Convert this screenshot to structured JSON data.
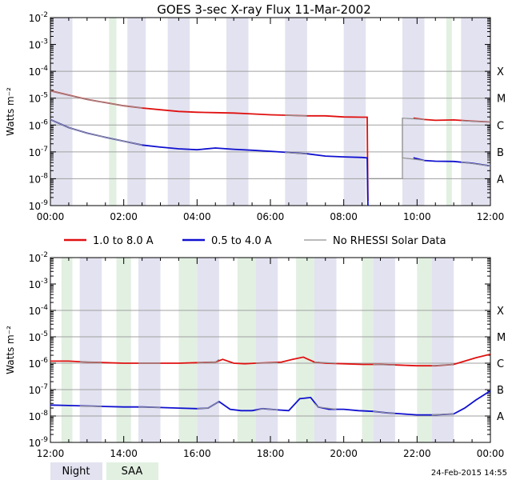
{
  "title": "GOES 3-sec X-ray Flux   11-Mar-2002",
  "footer_date": "24-Feb-2015 14:55",
  "colors": {
    "long_channel": "#e01010",
    "short_channel": "#1010d0",
    "no_rhessi": "#909090",
    "night": "#e2e2f0",
    "saa": "#e2f0e2",
    "grid": "#a0a0a0"
  },
  "legend": [
    {
      "label": "1.0 to 8.0 A",
      "color": "#e01010"
    },
    {
      "label": "0.5 to 4.0 A",
      "color": "#1010d0"
    },
    {
      "label": "No RHESSI Solar Data",
      "color": "#909090"
    }
  ],
  "band_legend": {
    "night": "Night",
    "saa": "SAA"
  },
  "chart_data": [
    {
      "type": "line",
      "ylabel": "Watts m⁻²",
      "y_scale": "log",
      "ylim": [
        1e-09,
        0.01
      ],
      "y_ticks": [
        {
          "value": 1e-09,
          "base": "10",
          "exp": "-9"
        },
        {
          "value": 1e-08,
          "base": "10",
          "exp": "-8"
        },
        {
          "value": 1e-07,
          "base": "10",
          "exp": "-7"
        },
        {
          "value": 1e-06,
          "base": "10",
          "exp": "-6"
        },
        {
          "value": 1e-05,
          "base": "10",
          "exp": "-5"
        },
        {
          "value": 0.0001,
          "base": "10",
          "exp": "-4"
        },
        {
          "value": 0.001,
          "base": "10",
          "exp": "-3"
        },
        {
          "value": 0.01,
          "base": "10",
          "exp": "-2"
        }
      ],
      "flare_classes": [
        {
          "label": "A",
          "value": 1e-08
        },
        {
          "label": "B",
          "value": 1e-07
        },
        {
          "label": "C",
          "value": 1e-06
        },
        {
          "label": "M",
          "value": 1e-05
        },
        {
          "label": "X",
          "value": 0.0001
        }
      ],
      "xlim": [
        0,
        12
      ],
      "x_ticks": [
        "00:00",
        "02:00",
        "04:00",
        "06:00",
        "08:00",
        "10:00",
        "12:00"
      ],
      "night_bands": [
        [
          0,
          0.6
        ],
        [
          2.1,
          2.6
        ],
        [
          3.2,
          3.8
        ],
        [
          4.8,
          5.4
        ],
        [
          6.4,
          7.0
        ],
        [
          8.0,
          8.6
        ],
        [
          9.6,
          10.2
        ],
        [
          11.2,
          12.0
        ]
      ],
      "saa_bands": [
        [
          1.6,
          1.8
        ],
        [
          10.8,
          10.95
        ]
      ],
      "series": [
        {
          "name": "1.0 to 8.0 A",
          "color": "#e01010",
          "segments": [
            [
              [
                0,
                1.9e-05
              ],
              [
                0.5,
                1.3e-05
              ],
              [
                1,
                9e-06
              ],
              [
                1.5,
                6.8e-06
              ],
              [
                2,
                5.2e-06
              ],
              [
                2.5,
                4.3e-06
              ],
              [
                3,
                3.7e-06
              ],
              [
                3.5,
                3.2e-06
              ],
              [
                4,
                3e-06
              ],
              [
                4.5,
                2.9e-06
              ],
              [
                5,
                2.8e-06
              ],
              [
                5.5,
                2.6e-06
              ],
              [
                6,
                2.4e-06
              ],
              [
                6.5,
                2.3e-06
              ],
              [
                7,
                2.2e-06
              ],
              [
                7.5,
                2.2e-06
              ],
              [
                8,
                2e-06
              ],
              [
                8.5,
                1.95e-06
              ],
              [
                8.64,
                1.95e-06
              ],
              [
                8.66,
                1.5e-09
              ]
            ],
            [
              [
                9.9,
                1.8e-06
              ],
              [
                10.2,
                1.6e-06
              ],
              [
                10.5,
                1.5e-06
              ],
              [
                11,
                1.55e-06
              ],
              [
                11.5,
                1.4e-06
              ],
              [
                12,
                1.3e-06
              ]
            ]
          ]
        },
        {
          "name": "0.5 to 4.0 A",
          "color": "#1010d0",
          "segments": [
            [
              [
                0,
                1.6e-06
              ],
              [
                0.5,
                8e-07
              ],
              [
                1,
                5e-07
              ],
              [
                1.5,
                3.5e-07
              ],
              [
                2,
                2.5e-07
              ],
              [
                2.5,
                1.8e-07
              ],
              [
                3,
                1.5e-07
              ],
              [
                3.5,
                1.3e-07
              ],
              [
                4,
                1.2e-07
              ],
              [
                4.5,
                1.4e-07
              ],
              [
                5,
                1.25e-07
              ],
              [
                5.5,
                1.15e-07
              ],
              [
                6,
                1.05e-07
              ],
              [
                6.5,
                9.5e-08
              ],
              [
                7,
                8.5e-08
              ],
              [
                7.5,
                7e-08
              ],
              [
                8,
                6.5e-08
              ],
              [
                8.5,
                6.2e-08
              ],
              [
                8.64,
                6e-08
              ],
              [
                8.66,
                1e-09
              ]
            ],
            [
              [
                9.9,
                6e-08
              ],
              [
                10.2,
                4.8e-08
              ],
              [
                10.5,
                4.5e-08
              ],
              [
                11,
                4.4e-08
              ],
              [
                11.5,
                3.8e-08
              ],
              [
                12,
                3e-08
              ]
            ]
          ]
        },
        {
          "name": "No RHESSI Solar Data",
          "color": "#909090",
          "segments": [
            [
              [
                0,
                1.9e-05
              ],
              [
                0.5,
                1.3e-05
              ],
              [
                1,
                9e-06
              ],
              [
                1.5,
                6.8e-06
              ],
              [
                2,
                5.2e-06
              ],
              [
                2.5,
                4.3e-06
              ]
            ],
            [
              [
                0,
                1.6e-06
              ],
              [
                0.5,
                8e-07
              ],
              [
                1,
                5e-07
              ],
              [
                1.5,
                3.5e-07
              ],
              [
                2,
                2.5e-07
              ],
              [
                2.5,
                1.8e-07
              ]
            ],
            [
              [
                6.4,
                2.3e-06
              ],
              [
                7,
                2.2e-06
              ]
            ],
            [
              [
                6.4,
                9.5e-08
              ],
              [
                7,
                8.5e-08
              ]
            ],
            [
              [
                8.66,
                1e-08
              ],
              [
                9.6,
                1e-08
              ],
              [
                9.6,
                1.8e-06
              ],
              [
                10.2,
                1.6e-06
              ]
            ],
            [
              [
                9.6,
                1.8e-06
              ],
              [
                9.6,
                6e-08
              ],
              [
                10.2,
                4.8e-08
              ]
            ],
            [
              [
                11.2,
                1.45e-06
              ],
              [
                12,
                1.3e-06
              ]
            ],
            [
              [
                11.2,
                4.2e-08
              ],
              [
                12,
                3e-08
              ]
            ]
          ]
        }
      ]
    },
    {
      "type": "line",
      "ylabel": "Watts m⁻²",
      "y_scale": "log",
      "ylim": [
        1e-09,
        0.01
      ],
      "y_ticks": [
        {
          "value": 1e-09,
          "base": "10",
          "exp": "-9"
        },
        {
          "value": 1e-08,
          "base": "10",
          "exp": "-8"
        },
        {
          "value": 1e-07,
          "base": "10",
          "exp": "-7"
        },
        {
          "value": 1e-06,
          "base": "10",
          "exp": "-6"
        },
        {
          "value": 1e-05,
          "base": "10",
          "exp": "-5"
        },
        {
          "value": 0.0001,
          "base": "10",
          "exp": "-4"
        },
        {
          "value": 0.001,
          "base": "10",
          "exp": "-3"
        },
        {
          "value": 0.01,
          "base": "10",
          "exp": "-2"
        }
      ],
      "flare_classes": [
        {
          "label": "A",
          "value": 1e-08
        },
        {
          "label": "B",
          "value": 1e-07
        },
        {
          "label": "C",
          "value": 1e-06
        },
        {
          "label": "M",
          "value": 1e-05
        },
        {
          "label": "X",
          "value": 0.0001
        }
      ],
      "xlim": [
        12,
        24
      ],
      "x_ticks": [
        "12:00",
        "14:00",
        "16:00",
        "18:00",
        "20:00",
        "22:00",
        "00:00"
      ],
      "night_bands": [
        [
          12.8,
          13.4
        ],
        [
          14.4,
          15.0
        ],
        [
          16.0,
          16.6
        ],
        [
          17.6,
          18.2
        ],
        [
          19.2,
          19.8
        ],
        [
          20.8,
          21.4
        ],
        [
          22.4,
          23.0
        ]
      ],
      "saa_bands": [
        [
          12.3,
          12.6
        ],
        [
          13.8,
          14.2
        ],
        [
          15.5,
          16.0
        ],
        [
          17.1,
          17.6
        ],
        [
          18.7,
          19.2
        ],
        [
          20.5,
          20.8
        ],
        [
          22.0,
          22.4
        ]
      ],
      "series": [
        {
          "name": "1.0 to 8.0 A",
          "color": "#e01010",
          "segments": [
            [
              [
                12,
                1.2e-06
              ],
              [
                12.5,
                1.2e-06
              ],
              [
                13,
                1.1e-06
              ],
              [
                13.5,
                1.05e-06
              ],
              [
                14,
                1e-06
              ],
              [
                14.5,
                1e-06
              ],
              [
                15,
                1e-06
              ],
              [
                15.5,
                1e-06
              ],
              [
                16,
                1.05e-06
              ],
              [
                16.5,
                1.1e-06
              ],
              [
                16.7,
                1.4e-06
              ],
              [
                17,
                1e-06
              ],
              [
                17.3,
                9.5e-07
              ],
              [
                17.6,
                1e-06
              ],
              [
                18,
                1.05e-06
              ],
              [
                18.3,
                1.1e-06
              ],
              [
                18.6,
                1.4e-06
              ],
              [
                18.9,
                1.7e-06
              ],
              [
                19.2,
                1.1e-06
              ],
              [
                19.5,
                1e-06
              ],
              [
                20,
                9.5e-07
              ],
              [
                20.5,
                9e-07
              ],
              [
                21,
                9e-07
              ],
              [
                21.5,
                8.5e-07
              ],
              [
                22,
                8e-07
              ],
              [
                22.5,
                8e-07
              ],
              [
                23,
                9e-07
              ],
              [
                23.3,
                1.2e-06
              ],
              [
                23.6,
                1.6e-06
              ],
              [
                24,
                2.2e-06
              ]
            ]
          ]
        },
        {
          "name": "0.5 to 4.0 A",
          "color": "#1010d0",
          "segments": [
            [
              [
                12,
                2.6e-08
              ],
              [
                12.5,
                2.5e-08
              ],
              [
                13,
                2.4e-08
              ],
              [
                13.5,
                2.3e-08
              ],
              [
                14,
                2.2e-08
              ],
              [
                14.5,
                2.2e-08
              ],
              [
                15,
                2.1e-08
              ],
              [
                15.5,
                2e-08
              ],
              [
                16,
                1.9e-08
              ],
              [
                16.3,
                2e-08
              ],
              [
                16.6,
                3.5e-08
              ],
              [
                16.9,
                1.8e-08
              ],
              [
                17.2,
                1.6e-08
              ],
              [
                17.5,
                1.6e-08
              ],
              [
                17.8,
                1.9e-08
              ],
              [
                18.2,
                1.7e-08
              ],
              [
                18.5,
                1.6e-08
              ],
              [
                18.8,
                4.5e-08
              ],
              [
                19.1,
                5e-08
              ],
              [
                19.3,
                2.2e-08
              ],
              [
                19.6,
                1.8e-08
              ],
              [
                20,
                1.8e-08
              ],
              [
                20.4,
                1.6e-08
              ],
              [
                20.8,
                1.5e-08
              ],
              [
                21.2,
                1.3e-08
              ],
              [
                21.6,
                1.2e-08
              ],
              [
                22,
                1.1e-08
              ],
              [
                22.5,
                1.1e-08
              ],
              [
                23,
                1.2e-08
              ],
              [
                23.3,
                2e-08
              ],
              [
                23.6,
                4e-08
              ],
              [
                24,
                9e-08
              ]
            ]
          ]
        },
        {
          "name": "No RHESSI Solar Data",
          "color": "#909090",
          "segments": [
            [
              [
                12.8,
                1.15e-06
              ],
              [
                13.4,
                1.05e-06
              ]
            ],
            [
              [
                12.8,
                2.4e-08
              ],
              [
                13.4,
                2.3e-08
              ]
            ],
            [
              [
                14.4,
                1e-06
              ],
              [
                15.0,
                1e-06
              ]
            ],
            [
              [
                14.4,
                2.2e-08
              ],
              [
                15.0,
                2.1e-08
              ]
            ],
            [
              [
                16.0,
                1.05e-06
              ],
              [
                16.5,
                1.1e-06
              ],
              [
                16.6,
                1.4e-06
              ]
            ],
            [
              [
                16.0,
                1.9e-08
              ],
              [
                16.3,
                2e-08
              ],
              [
                16.6,
                3.5e-08
              ]
            ],
            [
              [
                17.6,
                1e-06
              ],
              [
                18.2,
                1.05e-06
              ]
            ],
            [
              [
                17.6,
                1.6e-08
              ],
              [
                17.8,
                1.9e-08
              ],
              [
                18.2,
                1.7e-08
              ]
            ],
            [
              [
                19.2,
                1.1e-06
              ],
              [
                19.8,
                1e-06
              ]
            ],
            [
              [
                19.2,
                3e-08
              ],
              [
                19.3,
                2.2e-08
              ],
              [
                19.8,
                1.8e-08
              ]
            ],
            [
              [
                20.8,
                9e-07
              ],
              [
                21.4,
                8.5e-07
              ]
            ],
            [
              [
                20.8,
                1.5e-08
              ],
              [
                21.2,
                1.3e-08
              ],
              [
                21.4,
                1.25e-08
              ]
            ],
            [
              [
                22.4,
                8e-07
              ],
              [
                23.0,
                9e-07
              ]
            ],
            [
              [
                22.4,
                1.1e-08
              ],
              [
                23.0,
                1.2e-08
              ]
            ]
          ]
        }
      ]
    }
  ]
}
